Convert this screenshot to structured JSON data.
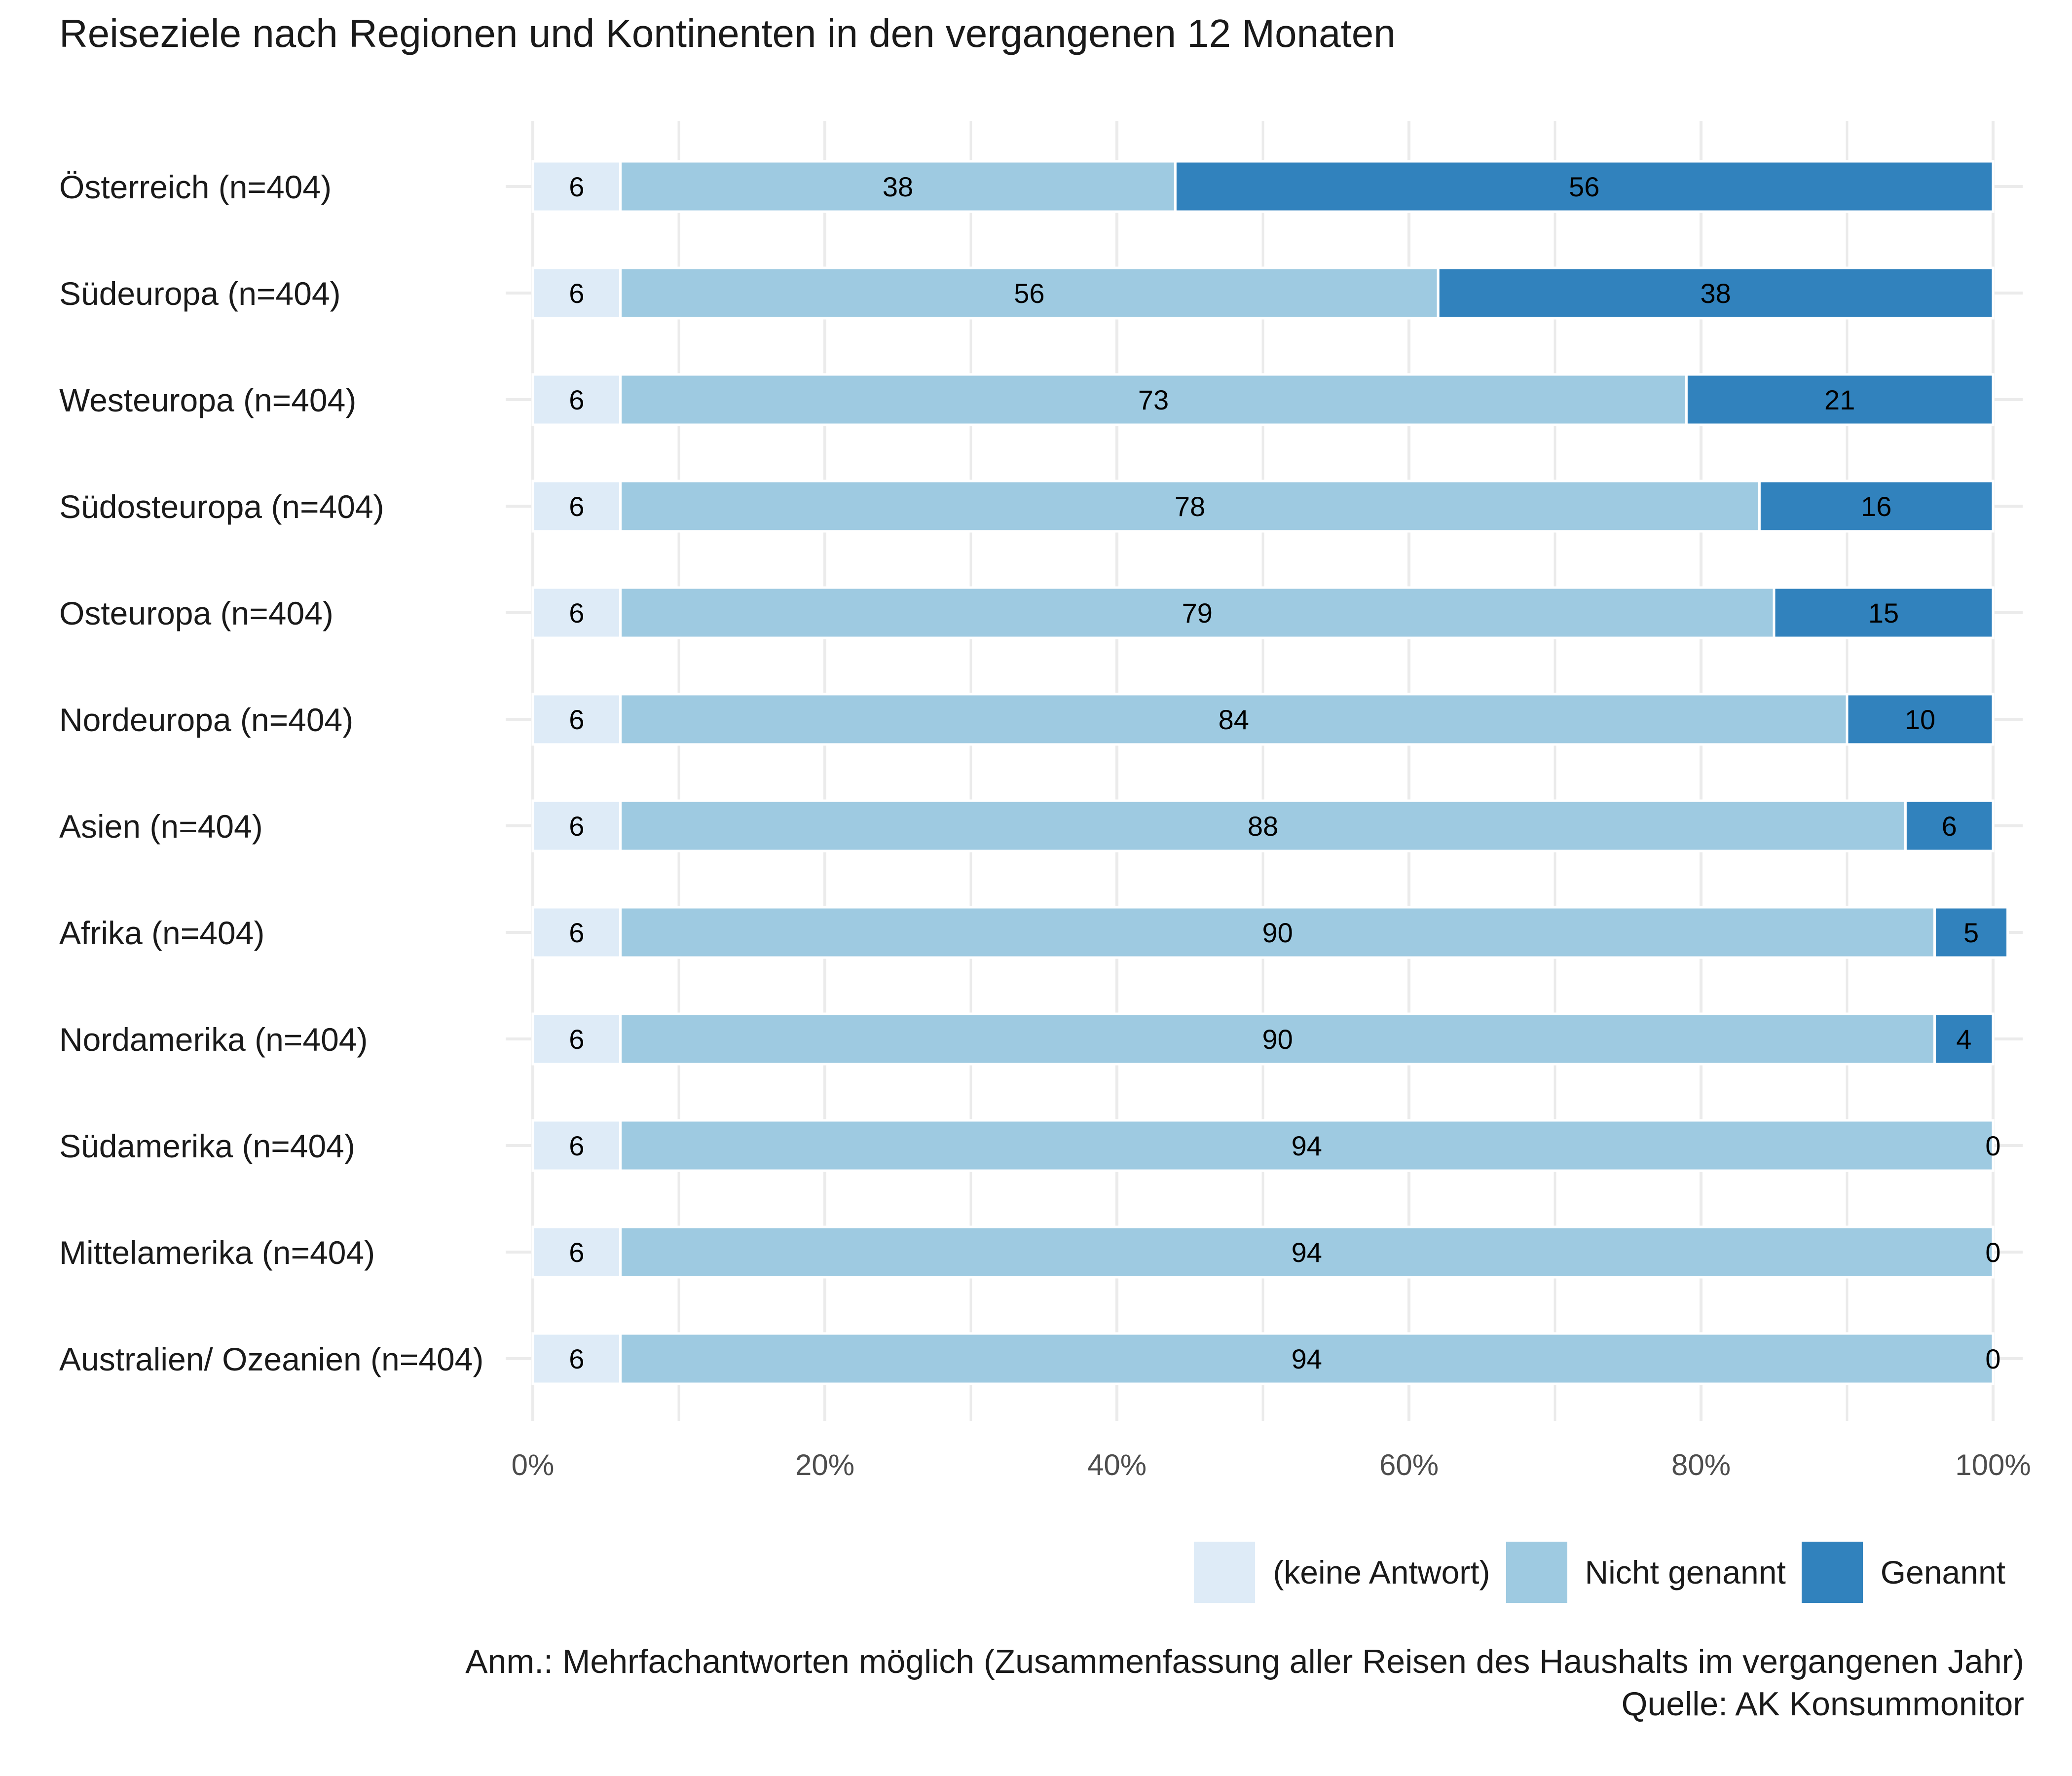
{
  "chart_data": {
    "type": "bar",
    "orientation": "horizontal",
    "stacked": true,
    "normalized": true,
    "title": "Reiseziele nach Regionen und Kontinenten in den vergangenen 12 Monaten",
    "xlabel": "",
    "ylabel": "",
    "xlim": [
      0,
      100
    ],
    "x_ticks": [
      "0%",
      "20%",
      "40%",
      "60%",
      "80%",
      "100%"
    ],
    "grid": true,
    "legend_position": "bottom-right",
    "categories": [
      "Österreich (n=404)",
      "Südeuropa (n=404)",
      "Westeuropa (n=404)",
      "Südosteuropa (n=404)",
      "Osteuropa (n=404)",
      "Nordeuropa (n=404)",
      "Asien (n=404)",
      "Afrika (n=404)",
      "Nordamerika (n=404)",
      "Südamerika (n=404)",
      "Mittelamerika (n=404)",
      "Australien/ Ozeanien (n=404)"
    ],
    "series": [
      {
        "name": "(keine Antwort)",
        "color": "#deebf7",
        "values": [
          6,
          6,
          6,
          6,
          6,
          6,
          6,
          6,
          6,
          6,
          6,
          6
        ]
      },
      {
        "name": "Nicht genannt",
        "color": "#9ecae1",
        "values": [
          38,
          56,
          73,
          78,
          79,
          84,
          88,
          90,
          90,
          94,
          94,
          94
        ]
      },
      {
        "name": "Genannt",
        "color": "#3182bd",
        "values": [
          56,
          38,
          21,
          16,
          15,
          10,
          6,
          5,
          4,
          0,
          0,
          0
        ]
      }
    ]
  },
  "notes": {
    "line1": "Anm.: Mehrfachantworten möglich (Zusammenfassung aller Reisen des Haushalts im vergangenen Jahr)",
    "line2": "Quelle: AK Konsummonitor"
  }
}
